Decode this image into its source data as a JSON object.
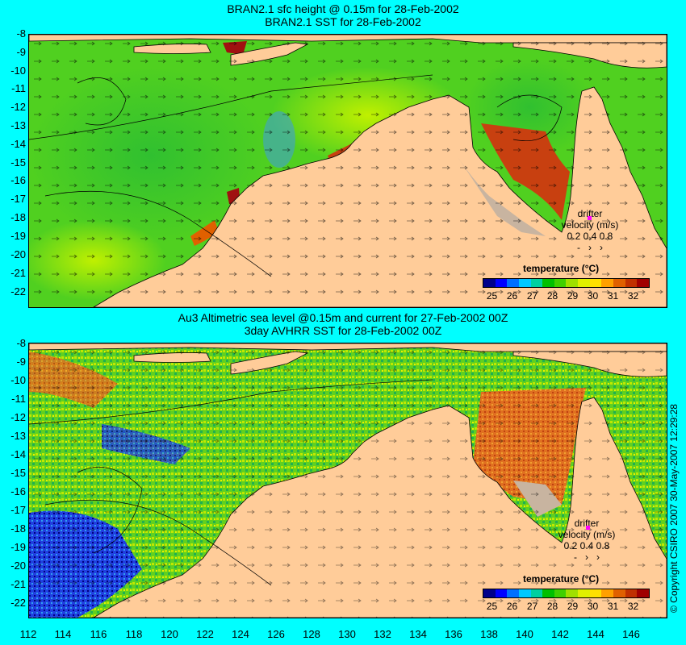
{
  "top_panel": {
    "title_line1": "BRAN2.1 sfc height @ 0.15m for 28-Feb-2002",
    "title_line2": "BRAN2.1 SST for 28-Feb-2002"
  },
  "bottom_panel": {
    "title_line1": "Au3 Altimetric sea level  @0.15m and current for 27-Feb-2002 00Z",
    "title_line2": "3day AVHRR SST for 28-Feb-2002 00Z"
  },
  "lat_ticks": [
    "-8",
    "-9",
    "-10",
    "-11",
    "-12",
    "-13",
    "-14",
    "-15",
    "-16",
    "-17",
    "-18",
    "-19",
    "-20",
    "-21",
    "-22"
  ],
  "lon_ticks": [
    "112",
    "114",
    "116",
    "118",
    "120",
    "122",
    "124",
    "126",
    "128",
    "130",
    "132",
    "134",
    "136",
    "138",
    "140",
    "142",
    "144",
    "146"
  ],
  "legend": {
    "title": "temperature (°C)",
    "labels": [
      "25",
      "26",
      "27",
      "28",
      "29",
      "30",
      "31",
      "32"
    ],
    "colors": [
      "#00008b",
      "#0000ff",
      "#0070ff",
      "#00c8ff",
      "#00d0a0",
      "#00c000",
      "#40d000",
      "#a0e000",
      "#e0f000",
      "#ffe000",
      "#ffa000",
      "#e06000",
      "#c03000",
      "#a00000"
    ]
  },
  "drifter": {
    "line1": "drifter",
    "line2": "velocity (m/s)",
    "line3": "0.2 0.4 0.8"
  },
  "copyright": "© Copyright CSIRO 2007   30-May-2007 12:29:28",
  "colors": {
    "background": "#00ffff",
    "land": "#ffcc99",
    "no_data": "#c8b4a0"
  }
}
